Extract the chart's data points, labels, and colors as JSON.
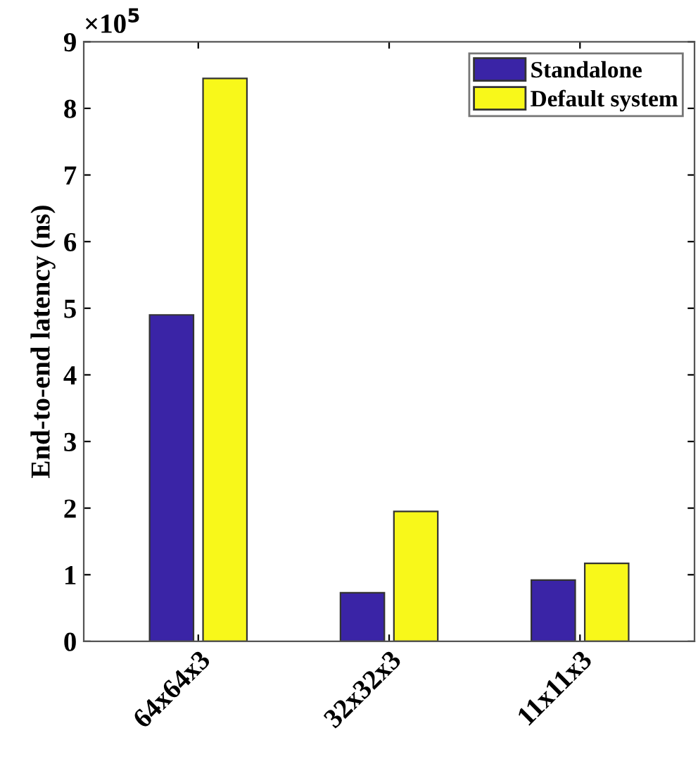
{
  "chart_data": {
    "type": "bar",
    "ylabel": "End-to-end latency (ns)",
    "annotations": [
      "×10$^{5}$"
    ],
    "categories": [
      "64x64x3",
      "32x32x3",
      "11x11x3"
    ],
    "series": [
      {
        "name": "Standalone",
        "color": "#3a24a6",
        "values": [
          4.9,
          0.73,
          0.92
        ]
      },
      {
        "name": "Default system",
        "color": "#f8f81a",
        "values": [
          8.45,
          1.95,
          1.17
        ]
      }
    ],
    "ylim": [
      0,
      9
    ],
    "yticks": [
      0,
      1,
      2,
      3,
      4,
      5,
      6,
      7,
      8,
      9
    ],
    "grid": false,
    "legend": "top right"
  }
}
